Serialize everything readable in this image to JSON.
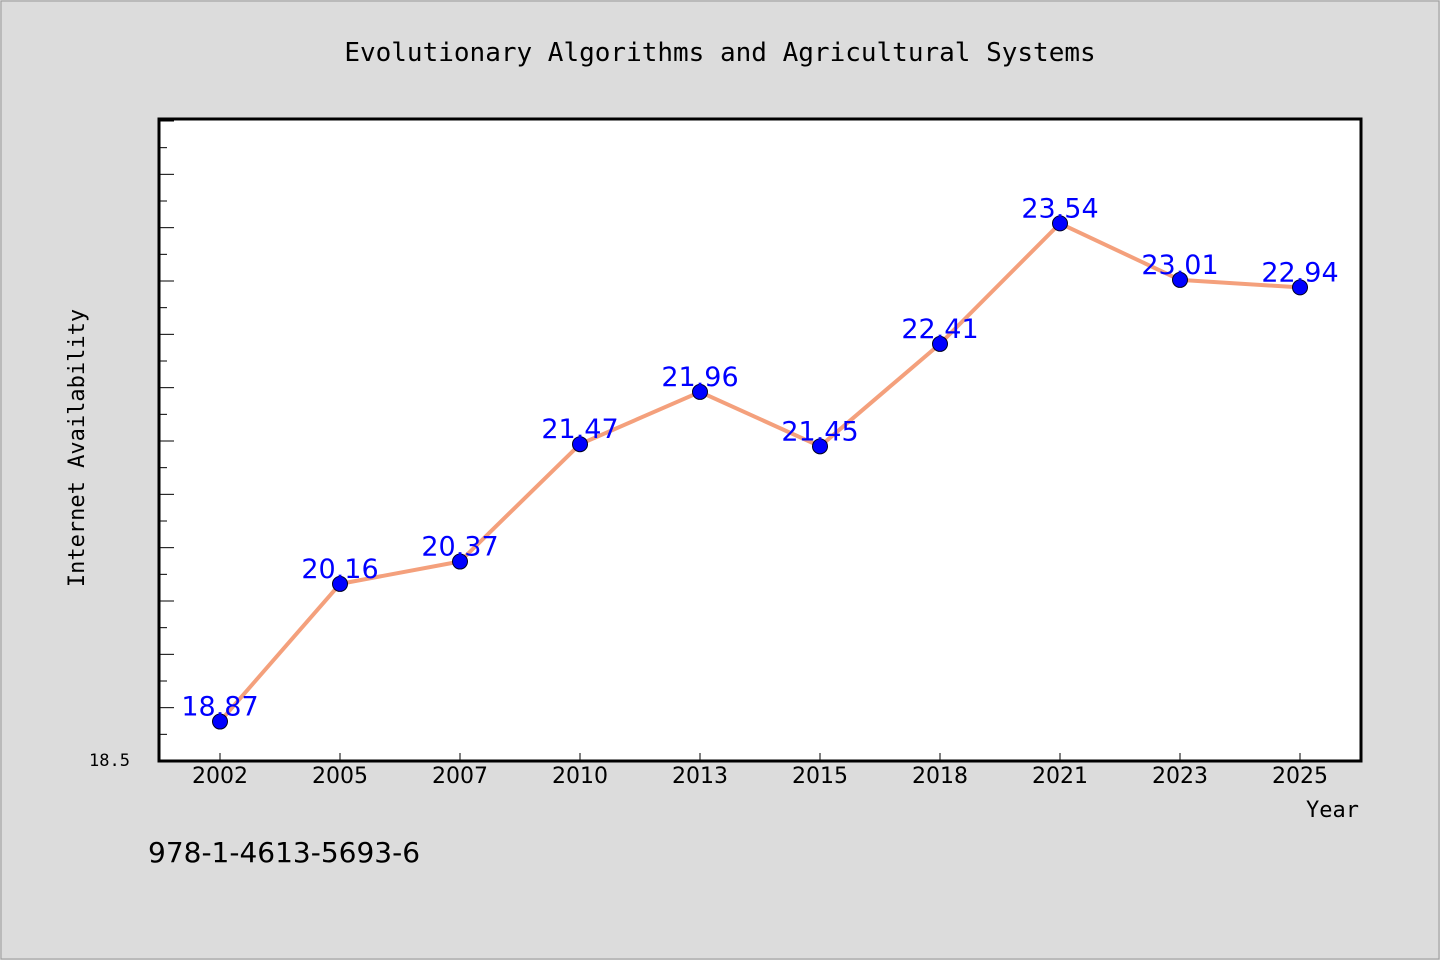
{
  "chart_data": {
    "type": "line",
    "title": "Evolutionary Algorithms and Agricultural Systems",
    "xlabel": "Year",
    "ylabel": "Internet Availability",
    "categories": [
      "2002",
      "2005",
      "2007",
      "2010",
      "2013",
      "2015",
      "2018",
      "2021",
      "2023",
      "2025"
    ],
    "series": [
      {
        "values": [
          18.87,
          20.16,
          20.37,
          21.47,
          21.96,
          21.45,
          22.41,
          23.54,
          23.01,
          22.94
        ]
      }
    ],
    "ylim": [
      18.5,
      24.5
    ],
    "y_tick_labels": [
      "18.5"
    ],
    "grid": false,
    "data_labels": true,
    "colors": {
      "background": "#dcdcdc",
      "plot_area": "#ffffff",
      "line": "#f4a07c",
      "marker": "#0000ff",
      "data_label": "#0000ff",
      "text": "#000000"
    }
  },
  "footer_text": "978-1-4613-5693-6"
}
